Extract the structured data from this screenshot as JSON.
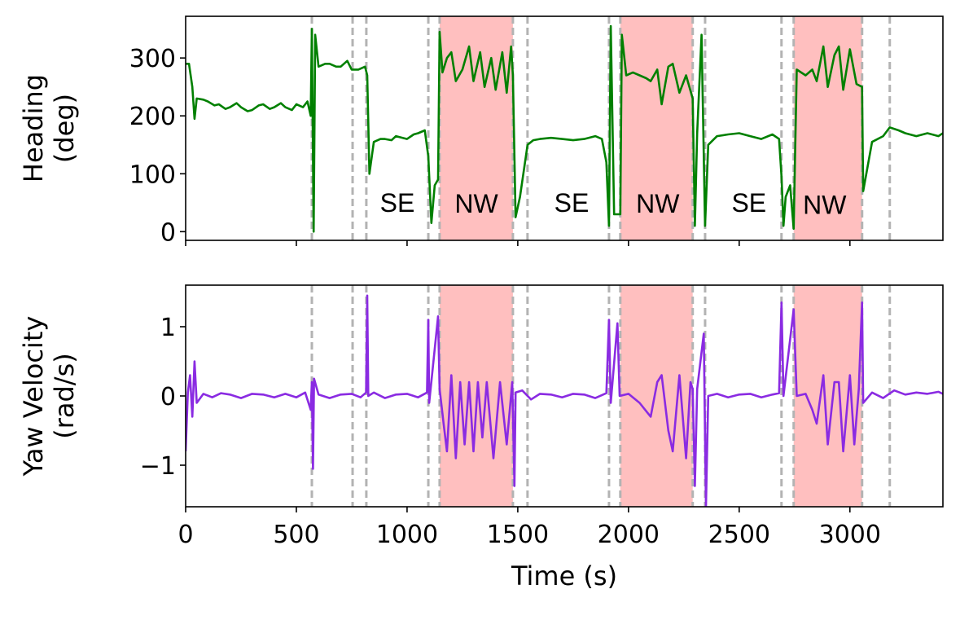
{
  "chart_data": [
    {
      "type": "line",
      "ylabel": [
        "Heading",
        "(deg)"
      ],
      "xlim": [
        0,
        3420
      ],
      "xticks": [
        0,
        500,
        1000,
        1500,
        2000,
        2500,
        3000
      ],
      "show_xtick_labels": false,
      "ylim": [
        -15,
        372
      ],
      "yticks": [
        0,
        100,
        200,
        300
      ],
      "vlines": [
        570,
        754,
        816,
        1096,
        1147,
        1478,
        1544,
        1912,
        1963,
        2290,
        2346,
        2691,
        2746,
        3055,
        3180
      ],
      "vline_color": "#b3b3b3",
      "shaded": [
        [
          1147,
          1478
        ],
        [
          1963,
          2290
        ],
        [
          2746,
          3055
        ]
      ],
      "shade_color": "#ffbfbf",
      "annotations": [
        {
          "text": "SE",
          "x": 956,
          "y": 34
        },
        {
          "text": "NW",
          "x": 1313,
          "y": 33
        },
        {
          "text": "SE",
          "x": 1743,
          "y": 34
        },
        {
          "text": "NW",
          "x": 2132,
          "y": 33
        },
        {
          "text": "SE",
          "x": 2544,
          "y": 34
        },
        {
          "text": "NW",
          "x": 2886,
          "y": 31
        }
      ],
      "x": [
        0,
        15,
        30,
        40,
        50,
        80,
        100,
        130,
        150,
        180,
        200,
        230,
        250,
        280,
        300,
        330,
        350,
        380,
        400,
        430,
        450,
        480,
        500,
        530,
        550,
        565,
        570,
        578,
        585,
        600,
        630,
        650,
        680,
        700,
        730,
        750,
        780,
        810,
        820,
        830,
        850,
        880,
        900,
        930,
        950,
        980,
        1000,
        1030,
        1050,
        1080,
        1096,
        1110,
        1125,
        1140,
        1147,
        1160,
        1180,
        1200,
        1220,
        1250,
        1280,
        1300,
        1330,
        1350,
        1380,
        1400,
        1430,
        1450,
        1470,
        1478,
        1490,
        1510,
        1544,
        1570,
        1600,
        1650,
        1700,
        1750,
        1800,
        1850,
        1880,
        1900,
        1912,
        1920,
        1935,
        1963,
        1970,
        1990,
        2020,
        2050,
        2080,
        2100,
        2130,
        2150,
        2180,
        2200,
        2230,
        2260,
        2290,
        2300,
        2310,
        2330,
        2346,
        2360,
        2400,
        2450,
        2500,
        2550,
        2600,
        2650,
        2680,
        2691,
        2700,
        2710,
        2730,
        2746,
        2760,
        2800,
        2830,
        2850,
        2880,
        2900,
        2930,
        2950,
        2970,
        3000,
        3030,
        3055,
        3060,
        3100,
        3150,
        3180,
        3220,
        3250,
        3300,
        3350,
        3400,
        3420
      ],
      "series": [
        {
          "color": "#008000",
          "values": [
            290,
            290,
            250,
            195,
            230,
            228,
            225,
            218,
            220,
            212,
            215,
            222,
            215,
            208,
            210,
            218,
            220,
            212,
            215,
            222,
            215,
            210,
            220,
            215,
            225,
            200,
            350,
            0,
            340,
            285,
            290,
            290,
            285,
            285,
            295,
            280,
            280,
            285,
            270,
            100,
            155,
            160,
            160,
            158,
            165,
            162,
            160,
            168,
            170,
            175,
            130,
            15,
            80,
            90,
            345,
            275,
            300,
            310,
            260,
            280,
            320,
            260,
            310,
            250,
            300,
            245,
            310,
            240,
            320,
            270,
            25,
            60,
            150,
            158,
            160,
            162,
            160,
            158,
            160,
            165,
            160,
            120,
            10,
            355,
            30,
            30,
            340,
            270,
            275,
            270,
            265,
            260,
            280,
            220,
            285,
            290,
            240,
            270,
            230,
            10,
            170,
            340,
            10,
            150,
            165,
            168,
            170,
            165,
            160,
            168,
            160,
            95,
            10,
            60,
            80,
            5,
            280,
            270,
            280,
            260,
            320,
            250,
            305,
            320,
            245,
            315,
            255,
            250,
            70,
            155,
            165,
            180,
            175,
            170,
            165,
            170,
            165,
            170
          ]
        }
      ]
    },
    {
      "type": "line",
      "ylabel": [
        "Yaw Velocity",
        "(rad/s)"
      ],
      "xlabel": "Time (s)",
      "xlim": [
        0,
        3420
      ],
      "xticks": [
        0,
        500,
        1000,
        1500,
        2000,
        2500,
        3000
      ],
      "show_xtick_labels": true,
      "ylim": [
        -1.6,
        1.6
      ],
      "yticks": [
        {
          "value": -1,
          "label": "−1"
        },
        0,
        1
      ],
      "vlines": [
        570,
        754,
        816,
        1096,
        1147,
        1478,
        1544,
        1912,
        1963,
        2290,
        2346,
        2691,
        2746,
        3055,
        3180
      ],
      "vline_color": "#b3b3b3",
      "shaded": [
        [
          1147,
          1478
        ],
        [
          1963,
          2290
        ],
        [
          2746,
          3055
        ]
      ],
      "shade_color": "#ffbfbf",
      "x": [
        0,
        10,
        20,
        30,
        40,
        50,
        80,
        120,
        160,
        200,
        250,
        300,
        350,
        400,
        450,
        500,
        540,
        565,
        570,
        575,
        580,
        600,
        650,
        700,
        750,
        790,
        815,
        820,
        825,
        850,
        900,
        950,
        1000,
        1050,
        1090,
        1096,
        1100,
        1140,
        1147,
        1165,
        1180,
        1200,
        1220,
        1240,
        1260,
        1280,
        1300,
        1320,
        1340,
        1360,
        1390,
        1420,
        1450,
        1475,
        1485,
        1490,
        1520,
        1560,
        1600,
        1650,
        1700,
        1750,
        1800,
        1850,
        1900,
        1912,
        1920,
        1950,
        1960,
        2000,
        2050,
        2100,
        2130,
        2150,
        2180,
        2200,
        2230,
        2260,
        2280,
        2290,
        2300,
        2310,
        2340,
        2350,
        2360,
        2400,
        2450,
        2500,
        2550,
        2600,
        2650,
        2680,
        2691,
        2700,
        2746,
        2760,
        2800,
        2830,
        2850,
        2880,
        2900,
        2930,
        2950,
        2970,
        3000,
        3020,
        3040,
        3055,
        3060,
        3100,
        3150,
        3200,
        3250,
        3300,
        3350,
        3400,
        3420
      ],
      "series": [
        {
          "color": "#8a2be2",
          "values": [
            -0.8,
            0.05,
            0.3,
            -0.3,
            0.5,
            -0.1,
            0.03,
            -0.02,
            0.04,
            0.02,
            -0.03,
            0.03,
            0.02,
            -0.02,
            0.03,
            -0.02,
            0.05,
            -0.2,
            0.2,
            -1.05,
            0.25,
            0.02,
            -0.03,
            0.02,
            0.03,
            -0.02,
            0.05,
            1.45,
            0,
            0.05,
            -0.03,
            0.02,
            0.03,
            -0.02,
            0.05,
            1.1,
            -0.1,
            1.15,
            0.1,
            -0.4,
            -0.8,
            0.3,
            -0.9,
            0.2,
            -0.7,
            0.2,
            -0.8,
            0.2,
            -0.6,
            0.2,
            -0.9,
            0.2,
            -0.7,
            0.2,
            -1.3,
            0.05,
            0.08,
            -0.05,
            0.03,
            0.02,
            -0.02,
            0.03,
            0.02,
            -0.03,
            0.04,
            1.1,
            -0.1,
            1.05,
            0,
            0.03,
            -0.1,
            -0.3,
            0.2,
            0.3,
            -0.5,
            -0.8,
            0.3,
            -0.9,
            0.2,
            0.1,
            -1.3,
            0.1,
            0.9,
            -1.6,
            0,
            0.03,
            -0.02,
            0.02,
            0.03,
            -0.02,
            0.02,
            0.04,
            1.35,
            0,
            1.25,
            0,
            0.03,
            -0.2,
            -0.4,
            0.3,
            -0.7,
            0.2,
            0.2,
            -0.8,
            0.3,
            -0.7,
            0.1,
            1.35,
            -0.1,
            0.05,
            -0.03,
            0.08,
            0.02,
            0.05,
            0.03,
            0.06,
            0.03
          ]
        }
      ]
    }
  ]
}
